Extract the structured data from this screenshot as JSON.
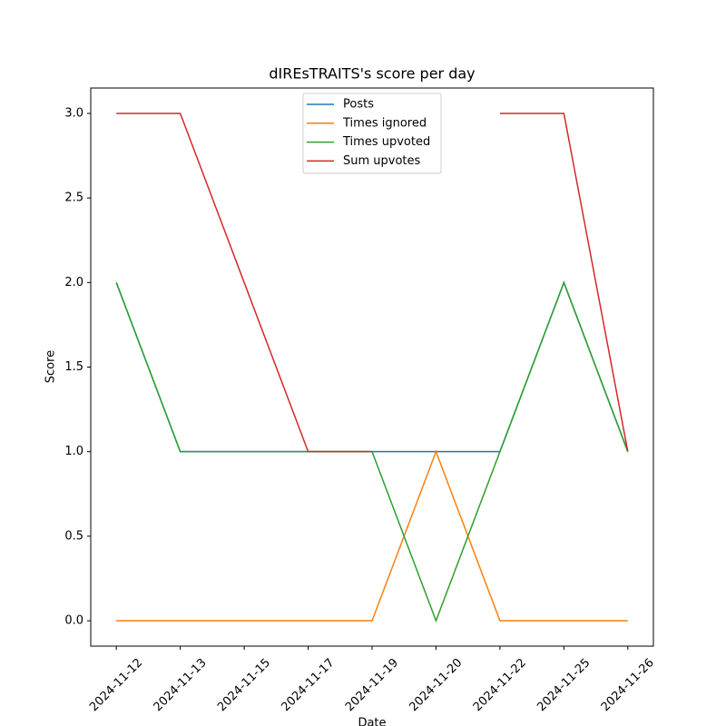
{
  "chart_data": {
    "type": "line",
    "title": "dIREsTRAITS's score per day",
    "x_label": "Date",
    "y_label": "Score",
    "categories": [
      "2024-11-12",
      "2024-11-13",
      "2024-11-15",
      "2024-11-17",
      "2024-11-19",
      "2024-11-20",
      "2024-11-22",
      "2024-11-25",
      "2024-11-26"
    ],
    "series": [
      {
        "name": "Posts",
        "color": "#1f77b4",
        "values": [
          2,
          1,
          1,
          1,
          1,
          1,
          1,
          2,
          1
        ]
      },
      {
        "name": "Times ignored",
        "color": "#ff7f0e",
        "values": [
          0,
          0,
          0,
          0,
          0,
          1,
          0,
          0,
          0
        ]
      },
      {
        "name": "Times upvoted",
        "color": "#2ca02c",
        "values": [
          2,
          1,
          1,
          1,
          1,
          0,
          1,
          2,
          1
        ]
      },
      {
        "name": "Sum upvotes",
        "color": "#d62728",
        "values": [
          3,
          3,
          2,
          1,
          1,
          null,
          3,
          3,
          1
        ]
      }
    ],
    "ylim": [
      -0.15,
      3.15
    ],
    "yticks": [
      {
        "value": 0,
        "label": "0.0"
      },
      {
        "value": 0.5,
        "label": "0.5"
      },
      {
        "value": 1,
        "label": "1.0"
      },
      {
        "value": 1.5,
        "label": "1.5"
      },
      {
        "value": 2,
        "label": "2.0"
      },
      {
        "value": 2.5,
        "label": "2.5"
      },
      {
        "value": 3,
        "label": "3.0"
      }
    ],
    "legend": "upper center",
    "grid": false
  }
}
